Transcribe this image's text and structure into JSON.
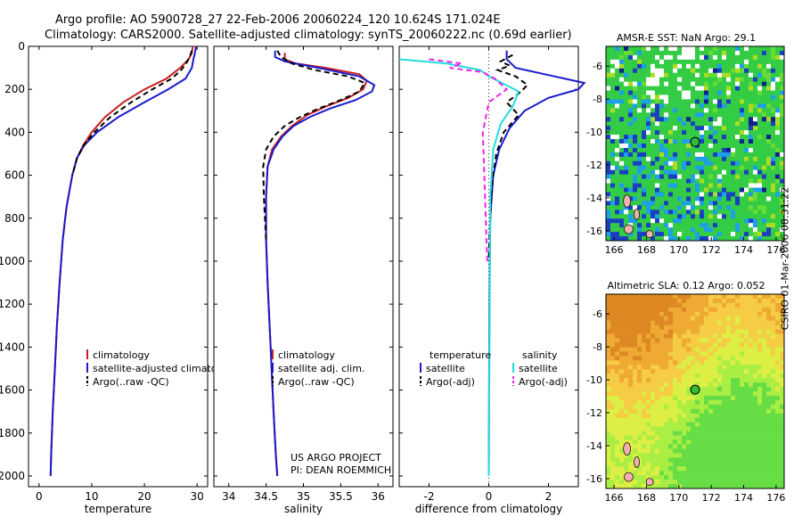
{
  "header": {
    "title_line1": "Argo profile: AO 5900728_27 22-Feb-2006 20060224_120 10.624S 171.024E",
    "title_line2": "Climatology: CARS2000. Satellite-adjusted climatology: synTS_20060222.nc (0.69d earlier)"
  },
  "annotations": {
    "project": "US ARGO PROJECT",
    "pi": "PI: DEAN ROEMMICH",
    "side_stamp": "CSIRO 01-Mar-2006 08:31:22"
  },
  "colors": {
    "climatology": "#c81e1e",
    "satellite": "#1a1acc",
    "argo": "#000000",
    "salinity_satellite": "#22dddd",
    "salinity_argo": "#ee22ee"
  },
  "chart_data": [
    {
      "type": "line",
      "name_key": "temperature-profile",
      "title": "",
      "xlabel": "temperature",
      "ylabel": "",
      "xlim": [
        -2,
        32
      ],
      "ylim": [
        2050,
        0
      ],
      "xticks": [
        0,
        10,
        20,
        30
      ],
      "yticks": [
        0,
        200,
        400,
        600,
        800,
        1000,
        1200,
        1400,
        1600,
        1800,
        2000
      ],
      "legend": {
        "placement": "lower-right",
        "entries": [
          "climatology",
          "satellite-adjusted climatology",
          "Argo(..raw -QC)"
        ]
      },
      "series": [
        {
          "name": "climatology",
          "x": [
            29.2,
            29.0,
            28.4,
            26.8,
            24.2,
            20.0,
            16.0,
            12.5,
            10.0,
            8.4,
            7.2,
            6.3,
            5.2,
            4.5,
            3.9,
            3.4,
            3.0,
            2.6,
            2.3,
            2.2
          ],
          "y": [
            0,
            30,
            60,
            100,
            150,
            200,
            260,
            330,
            400,
            460,
            520,
            600,
            750,
            900,
            1100,
            1300,
            1500,
            1700,
            1900,
            2000
          ]
        },
        {
          "name": "satellite-adjusted climatology",
          "x": [
            29.8,
            29.6,
            29.3,
            29.0,
            27.8,
            24.5,
            20.0,
            15.0,
            11.0,
            8.6,
            7.2,
            6.3,
            5.2,
            4.5,
            3.9,
            3.4,
            3.0,
            2.6,
            2.3,
            2.2
          ],
          "y": [
            0,
            30,
            60,
            100,
            150,
            200,
            260,
            330,
            400,
            460,
            520,
            600,
            750,
            900,
            1100,
            1300,
            1500,
            1700,
            1900,
            2000
          ]
        },
        {
          "name": "Argo(..raw -QC)",
          "x": [
            29.0,
            28.6,
            27.9,
            27.0,
            25.2,
            21.5,
            17.5,
            13.5,
            10.5,
            8.5,
            7.2,
            6.3
          ],
          "y": [
            20,
            50,
            80,
            110,
            150,
            200,
            260,
            330,
            400,
            460,
            520,
            600
          ]
        }
      ]
    },
    {
      "type": "line",
      "name_key": "salinity-profile",
      "title": "",
      "xlabel": "salinity",
      "ylabel": "",
      "xlim": [
        33.8,
        36.2
      ],
      "ylim": [
        2050,
        0
      ],
      "xticks": [
        34,
        34.5,
        35,
        35.5,
        36
      ],
      "yticks": [
        0,
        200,
        400,
        600,
        800,
        1000,
        1200,
        1400,
        1600,
        1800,
        2000
      ],
      "legend": {
        "placement": "lower-right",
        "entries": [
          "climatology",
          "satellite adj. clim.",
          "Argo(..raw -QC)"
        ]
      },
      "series": [
        {
          "name": "climatology",
          "x": [
            34.75,
            34.75,
            34.9,
            35.3,
            35.75,
            35.85,
            35.8,
            35.6,
            35.3,
            35.05,
            34.85,
            34.7,
            34.58,
            34.52,
            34.5,
            34.5,
            34.52,
            34.56,
            34.6,
            34.63,
            34.65
          ],
          "y": [
            30,
            60,
            80,
            100,
            130,
            160,
            200,
            240,
            280,
            320,
            370,
            420,
            480,
            560,
            700,
            900,
            1100,
            1400,
            1700,
            1900,
            2000
          ]
        },
        {
          "name": "satellite adj. clim.",
          "x": [
            34.62,
            34.62,
            34.75,
            35.2,
            35.75,
            35.95,
            35.92,
            35.7,
            35.35,
            35.08,
            34.87,
            34.72,
            34.6,
            34.52,
            34.5,
            34.5,
            34.52,
            34.56,
            34.6,
            34.63,
            34.65
          ],
          "y": [
            20,
            50,
            70,
            100,
            140,
            180,
            210,
            250,
            290,
            330,
            370,
            420,
            480,
            560,
            700,
            900,
            1100,
            1400,
            1700,
            1900,
            2000
          ]
        },
        {
          "name": "Argo(..raw -QC)",
          "x": [
            34.65,
            34.7,
            34.85,
            35.15,
            35.6,
            35.82,
            35.75,
            35.5,
            35.2,
            34.95,
            34.75,
            34.6,
            34.5,
            34.46,
            34.47,
            34.5
          ],
          "y": [
            20,
            50,
            80,
            110,
            140,
            170,
            210,
            250,
            290,
            330,
            370,
            420,
            480,
            560,
            700,
            900
          ]
        }
      ]
    },
    {
      "type": "line",
      "name_key": "difference-profile",
      "title": "",
      "xlabel": "difference from climatology",
      "ylabel": "",
      "xlim": [
        -3,
        3
      ],
      "ylim": [
        2050,
        0
      ],
      "xticks": [
        -2,
        0,
        2
      ],
      "yticks": [
        0,
        200,
        400,
        600,
        800,
        1000,
        1200,
        1400,
        1600,
        1800,
        2000
      ],
      "legend": {
        "placement": "lower",
        "entries": [
          "temperature",
          "satellite",
          "Argo(-adj)",
          "salinity",
          "satellite",
          "Argo(-adj)"
        ]
      },
      "series": [
        {
          "name": "temperature satellite",
          "x": [
            0.6,
            0.6,
            0.9,
            2.2,
            3.2,
            3.0,
            2.0,
            1.2,
            0.7,
            0.35,
            0.15,
            0.05,
            0.02,
            0.0
          ],
          "y": [
            20,
            60,
            100,
            140,
            170,
            200,
            240,
            300,
            380,
            480,
            600,
            800,
            1200,
            2000
          ]
        },
        {
          "name": "temperature Argo(-adj)",
          "x": [
            0.8,
            0.4,
            0.7,
            0.3,
            0.9,
            1.3,
            1.0,
            0.6,
            1.0,
            0.5,
            0.25,
            0.1,
            0.02,
            0.0
          ],
          "y": [
            40,
            70,
            90,
            110,
            140,
            180,
            220,
            260,
            320,
            400,
            500,
            650,
            900,
            1000
          ]
        },
        {
          "name": "salinity satellite",
          "x": [
            -3.0,
            -1.4,
            -0.3,
            0.0,
            0.3,
            1.0,
            0.8,
            0.4,
            0.15,
            0.05,
            0.0
          ],
          "y": [
            60,
            80,
            110,
            140,
            160,
            210,
            280,
            360,
            480,
            700,
            2000
          ]
        },
        {
          "name": "salinity Argo(-adj)",
          "x": [
            -2.0,
            -0.9,
            -1.3,
            -0.2,
            0.2,
            0.6,
            0.0,
            -0.2,
            -0.15,
            -0.1,
            -0.05
          ],
          "y": [
            60,
            80,
            100,
            120,
            150,
            200,
            260,
            400,
            600,
            800,
            1000
          ]
        }
      ]
    },
    {
      "type": "heatmap",
      "name_key": "sst-map",
      "title": "AMSR-E SST: NaN Argo: 29.1",
      "xlabel": "",
      "ylabel": "",
      "xlim": [
        165.5,
        176.5
      ],
      "ylim": [
        -16.6,
        -4.8
      ],
      "xticks": [
        166,
        168,
        170,
        172,
        174,
        176
      ],
      "yticks": [
        -6,
        -8,
        -10,
        -12,
        -14,
        -16
      ],
      "marker": {
        "lon": 171.0,
        "lat": -10.6
      }
    },
    {
      "type": "heatmap",
      "name_key": "sla-map",
      "title": "Altimetric SLA: 0.12 Argo: 0.052",
      "xlabel": "",
      "ylabel": "",
      "xlim": [
        165.5,
        176.5
      ],
      "ylim": [
        -16.6,
        -4.8
      ],
      "xticks": [
        166,
        168,
        170,
        172,
        174,
        176
      ],
      "yticks": [
        -6,
        -8,
        -10,
        -12,
        -14,
        -16
      ],
      "marker": {
        "lon": 171.0,
        "lat": -10.6
      }
    }
  ]
}
